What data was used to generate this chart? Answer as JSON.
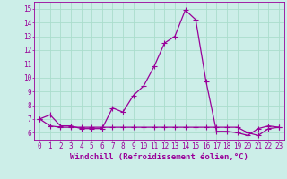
{
  "line1_x": [
    0,
    1,
    2,
    3,
    4,
    5,
    6,
    7,
    8,
    9,
    10,
    11,
    12,
    13,
    14,
    15,
    16,
    17,
    18,
    19,
    20,
    21,
    22,
    23
  ],
  "line1_y": [
    7.0,
    7.3,
    6.5,
    6.5,
    6.3,
    6.3,
    6.3,
    7.8,
    7.5,
    8.7,
    9.4,
    10.8,
    12.5,
    13.0,
    14.9,
    14.2,
    9.7,
    6.1,
    6.1,
    6.0,
    5.8,
    6.3,
    6.5,
    6.4
  ],
  "line2_x": [
    0,
    1,
    2,
    3,
    4,
    5,
    6,
    7,
    8,
    9,
    10,
    11,
    12,
    13,
    14,
    15,
    16,
    17,
    18,
    19,
    20,
    21,
    22,
    23
  ],
  "line2_y": [
    7.0,
    6.5,
    6.4,
    6.4,
    6.4,
    6.4,
    6.4,
    6.4,
    6.4,
    6.4,
    6.4,
    6.4,
    6.4,
    6.4,
    6.4,
    6.4,
    6.4,
    6.4,
    6.4,
    6.4,
    6.0,
    5.8,
    6.3,
    6.4
  ],
  "line_color": "#990099",
  "marker": "+",
  "marker_size": 4,
  "line_width": 0.9,
  "xlim": [
    -0.5,
    23.5
  ],
  "ylim": [
    5.5,
    15.5
  ],
  "yticks": [
    6,
    7,
    8,
    9,
    10,
    11,
    12,
    13,
    14,
    15
  ],
  "xticks": [
    0,
    1,
    2,
    3,
    4,
    5,
    6,
    7,
    8,
    9,
    10,
    11,
    12,
    13,
    14,
    15,
    16,
    17,
    18,
    19,
    20,
    21,
    22,
    23
  ],
  "xlabel": "Windchill (Refroidissement éolien,°C)",
  "background_color": "#cceee8",
  "grid_color": "#aaddcc",
  "tick_label_color": "#990099",
  "axis_color": "#990099",
  "label_fontsize": 6.5,
  "tick_fontsize": 5.5
}
